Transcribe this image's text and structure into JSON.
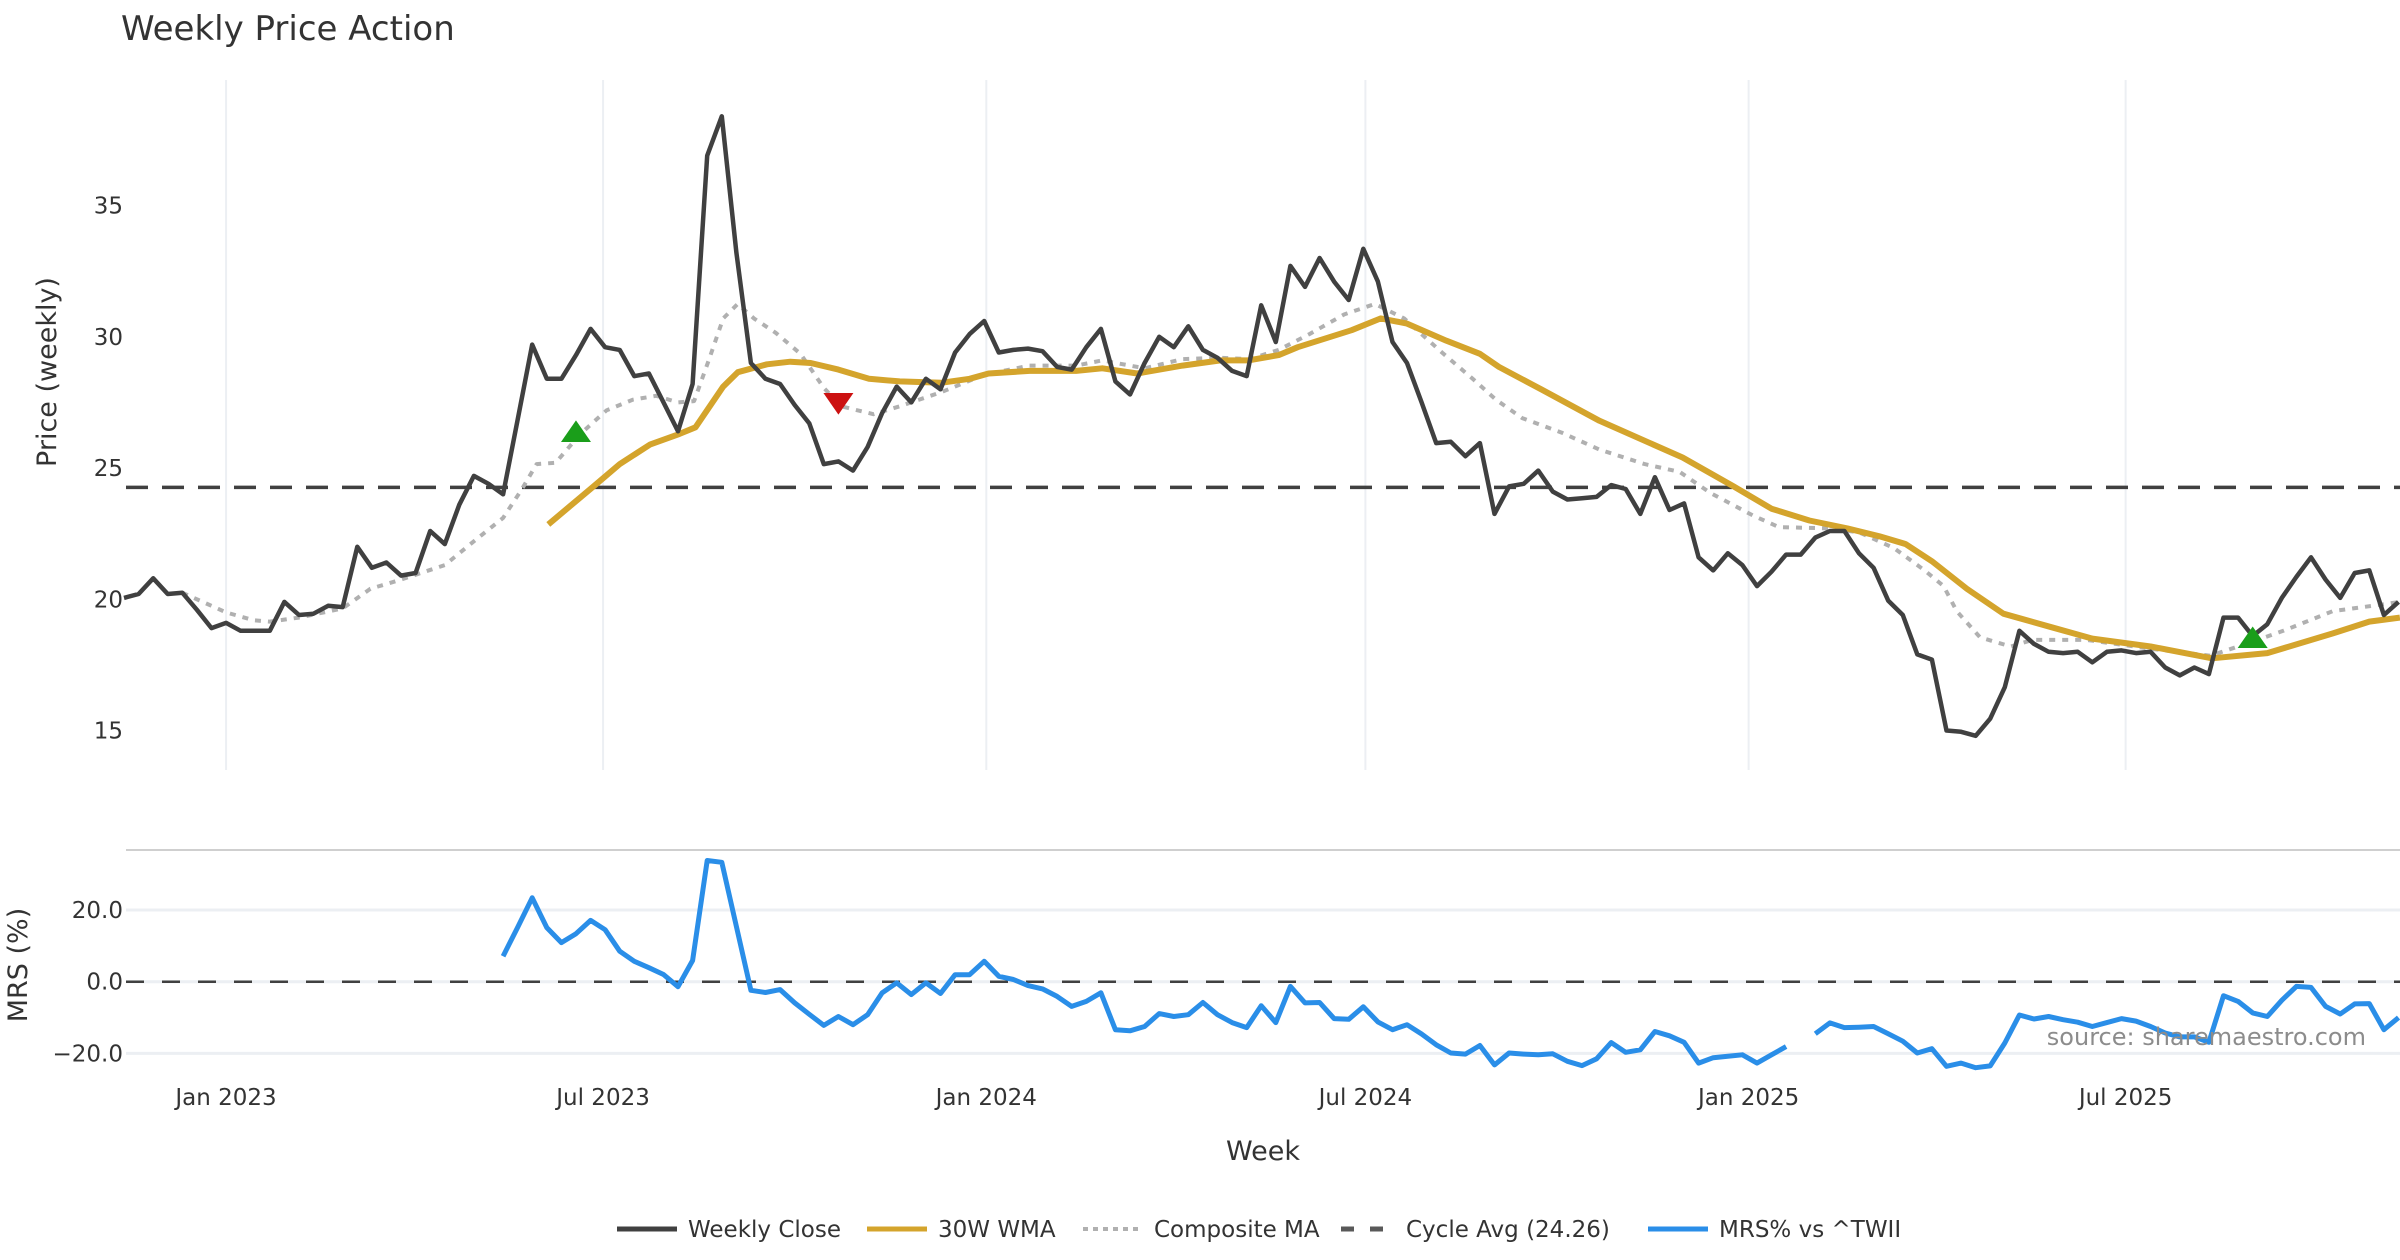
{
  "chart_data": [
    {
      "type": "line",
      "title": "Weekly Price Action",
      "xlabel": "Week",
      "ylabel": "Price (weekly)",
      "ylim": [
        13.5,
        39.8
      ],
      "yticks": [
        15,
        20,
        25,
        30,
        35
      ],
      "x_start_week": "2022-11-13",
      "x_step_days": 7,
      "xticks": [
        {
          "date": "2023-01-01",
          "label": "Jan 2023"
        },
        {
          "date": "2023-07-01",
          "label": "Jul 2023"
        },
        {
          "date": "2024-01-01",
          "label": "Jan 2024"
        },
        {
          "date": "2024-07-01",
          "label": "Jul 2024"
        },
        {
          "date": "2025-01-01",
          "label": "Jan 2025"
        },
        {
          "date": "2025-07-01",
          "label": "Jul 2025"
        }
      ],
      "grid": true,
      "series": [
        {
          "name": "Weekly Close",
          "color": "#404040",
          "style": "solid",
          "values": [
            20.05,
            20.2,
            20.8,
            20.2,
            20.25,
            19.6,
            18.9,
            19.1,
            18.8,
            18.8,
            18.8,
            19.9,
            19.4,
            19.45,
            19.75,
            19.7,
            22.0,
            21.2,
            21.4,
            20.9,
            21.0,
            22.6,
            22.1,
            23.6,
            24.7,
            24.4,
            24.0,
            26.85,
            29.7,
            28.4,
            28.4,
            29.3,
            30.3,
            29.6,
            29.5,
            28.5,
            28.6,
            27.5,
            26.4,
            28.2,
            36.9,
            38.4,
            33.2,
            29.0,
            28.4,
            28.2,
            27.4,
            26.7,
            25.15,
            25.25,
            24.9,
            25.8,
            27.1,
            28.1,
            27.5,
            28.4,
            28.0,
            29.4,
            30.1,
            30.6,
            29.4,
            29.5,
            29.55,
            29.45,
            28.85,
            28.75,
            29.6,
            30.3,
            28.3,
            27.8,
            29.0,
            30.0,
            29.6,
            30.4,
            29.5,
            29.2,
            28.7,
            28.5,
            31.2,
            29.8,
            32.7,
            31.9,
            33.0,
            32.1,
            31.4,
            33.35,
            32.1,
            29.8,
            29.0,
            27.5,
            25.95,
            26.0,
            25.45,
            25.95,
            23.25,
            24.3,
            24.4,
            24.9,
            24.1,
            23.8,
            23.85,
            23.9,
            24.35,
            24.2,
            23.25,
            24.65,
            23.4,
            23.65,
            21.6,
            21.1,
            21.75,
            21.3,
            20.5,
            21.05,
            21.7,
            21.7,
            22.35,
            22.6,
            22.6,
            21.75,
            21.2,
            19.95,
            19.4,
            17.9,
            17.7,
            15.0,
            14.95,
            14.8,
            15.45,
            16.65,
            18.8,
            18.3,
            18.0,
            17.95,
            18.0,
            17.6,
            18.0,
            18.05,
            17.95,
            18.0,
            17.4,
            17.1,
            17.4,
            17.15,
            19.3,
            19.3,
            18.6,
            19.05,
            20.05,
            20.85,
            21.6,
            20.75,
            20.05,
            21.0,
            21.1,
            19.4,
            19.9
          ]
        },
        {
          "name": "30W WMA",
          "color": "#d4a42c",
          "style": "solid",
          "points": [
            [
              29.1,
              22.85
            ],
            [
              32.2,
              24.3
            ],
            [
              34.0,
              25.15
            ],
            [
              36.1,
              25.9
            ],
            [
              38.1,
              26.3
            ],
            [
              39.2,
              26.55
            ],
            [
              41.1,
              28.1
            ],
            [
              42.1,
              28.65
            ],
            [
              44.1,
              28.95
            ],
            [
              45.7,
              29.05
            ],
            [
              47.1,
              29.0
            ],
            [
              49,
              28.75
            ],
            [
              51.1,
              28.4
            ],
            [
              53.2,
              28.3
            ],
            [
              56.1,
              28.25
            ],
            [
              58,
              28.4
            ],
            [
              59.3,
              28.6
            ],
            [
              62.1,
              28.7
            ],
            [
              65.3,
              28.7
            ],
            [
              67.1,
              28.8
            ],
            [
              69.5,
              28.6
            ],
            [
              72.6,
              28.9
            ],
            [
              75.2,
              29.1
            ],
            [
              77.1,
              29.1
            ],
            [
              79.2,
              29.3
            ],
            [
              80.5,
              29.6
            ],
            [
              84.2,
              30.25
            ],
            [
              86.2,
              30.7
            ],
            [
              88,
              30.5
            ],
            [
              90.7,
              29.85
            ],
            [
              93,
              29.35
            ],
            [
              94.3,
              28.85
            ],
            [
              97.2,
              28.0
            ],
            [
              101.2,
              26.8
            ],
            [
              106.9,
              25.4
            ],
            [
              110.4,
              24.3
            ],
            [
              113,
              23.45
            ],
            [
              115.6,
              23.0
            ],
            [
              118.2,
              22.7
            ],
            [
              120.4,
              22.4
            ],
            [
              122.2,
              22.1
            ],
            [
              124,
              21.45
            ],
            [
              126.4,
              20.4
            ],
            [
              128.9,
              19.45
            ],
            [
              132.1,
              18.95
            ],
            [
              135,
              18.5
            ],
            [
              139,
              18.2
            ],
            [
              143.2,
              17.75
            ],
            [
              147,
              17.95
            ],
            [
              151.5,
              18.7
            ],
            [
              154,
              19.15
            ],
            [
              156.1,
              19.3
            ]
          ]
        },
        {
          "name": "Composite MA",
          "color": "#b0b0b0",
          "style": "dotted",
          "points": [
            [
              4,
              20.25
            ],
            [
              7,
              19.5
            ],
            [
              8.9,
              19.2
            ],
            [
              10,
              19.15
            ],
            [
              12,
              19.3
            ],
            [
              15,
              19.65
            ],
            [
              16.9,
              20.4
            ],
            [
              19,
              20.75
            ],
            [
              22,
              21.3
            ],
            [
              24.2,
              22.3
            ],
            [
              26,
              23.1
            ],
            [
              27.3,
              24.2
            ],
            [
              28.3,
              25.15
            ],
            [
              29.6,
              25.2
            ],
            [
              31.3,
              26.3
            ],
            [
              33.1,
              27.2
            ],
            [
              34.9,
              27.6
            ],
            [
              36.5,
              27.75
            ],
            [
              38,
              27.5
            ],
            [
              39.1,
              27.55
            ],
            [
              40.1,
              29.1
            ],
            [
              41.1,
              30.7
            ],
            [
              42.1,
              31.25
            ],
            [
              43.2,
              30.7
            ],
            [
              44.7,
              30.15
            ],
            [
              46.4,
              29.35
            ],
            [
              48,
              28.05
            ],
            [
              49.2,
              27.35
            ],
            [
              51.4,
              27.05
            ],
            [
              53.2,
              27.35
            ],
            [
              56.1,
              27.9
            ],
            [
              59,
              28.55
            ],
            [
              62.1,
              28.9
            ],
            [
              65.3,
              28.9
            ],
            [
              67.1,
              29.1
            ],
            [
              70,
              28.8
            ],
            [
              72.6,
              29.15
            ],
            [
              75.2,
              29.2
            ],
            [
              77.2,
              29.15
            ],
            [
              79.2,
              29.5
            ],
            [
              81.3,
              30.1
            ],
            [
              83.7,
              30.85
            ],
            [
              85.8,
              31.25
            ],
            [
              87.8,
              30.7
            ],
            [
              90.4,
              29.4
            ],
            [
              92.5,
              28.4
            ],
            [
              94.1,
              27.6
            ],
            [
              95.9,
              26.9
            ],
            [
              98.6,
              26.35
            ],
            [
              101.2,
              25.7
            ],
            [
              104.3,
              25.15
            ],
            [
              106.7,
              24.85
            ],
            [
              108.8,
              24.05
            ],
            [
              111.7,
              23.2
            ],
            [
              113.5,
              22.75
            ],
            [
              116.9,
              22.7
            ],
            [
              119,
              22.55
            ],
            [
              121.4,
              21.95
            ],
            [
              123.5,
              21.1
            ],
            [
              124.8,
              20.5
            ],
            [
              125.7,
              19.55
            ],
            [
              127.3,
              18.55
            ],
            [
              129.4,
              18.2
            ],
            [
              130.9,
              18.45
            ],
            [
              134.6,
              18.45
            ],
            [
              139.2,
              18.1
            ],
            [
              143.1,
              17.85
            ],
            [
              145.8,
              18.35
            ],
            [
              148.1,
              18.8
            ],
            [
              151.5,
              19.55
            ],
            [
              154.9,
              19.8
            ],
            [
              156.1,
              19.9
            ]
          ]
        },
        {
          "name": "Cycle Avg (24.26)",
          "color": "#404040",
          "style": "dashed",
          "value": 24.26
        }
      ],
      "markers": [
        {
          "type": "buy",
          "shape": "triangle-up",
          "color": "#1a9e1a",
          "week_index": 31,
          "price": 26.3
        },
        {
          "type": "sell",
          "shape": "triangle-down",
          "color": "#cc1111",
          "week_index": 49,
          "price": 27.55
        },
        {
          "type": "buy",
          "shape": "triangle-up",
          "color": "#1a9e1a",
          "week_index": 146,
          "price": 18.45
        }
      ]
    },
    {
      "type": "line",
      "ylabel": "MRS (%)",
      "ylim": [
        -26,
        36.7
      ],
      "yticks": [
        {
          "value": 20,
          "label": "20.0"
        },
        {
          "value": 0,
          "label": "0.0"
        },
        {
          "value": -20,
          "label": "−20.0"
        }
      ],
      "reference_line": {
        "value": 0,
        "style": "dashed",
        "color": "#404040"
      },
      "series": [
        {
          "name": "MRS% vs ^TWII",
          "color": "#2a8ee8",
          "start_index": 26,
          "values": [
            7.1,
            15.2,
            23.4,
            15.1,
            10.9,
            13.4,
            17.1,
            14.5,
            8.5,
            5.7,
            3.9,
            2.0,
            -1.4,
            5.9,
            33.8,
            33.3,
            15.4,
            -2.4,
            -3.0,
            -2.2,
            -5.9,
            -9.1,
            -12.2,
            -9.7,
            -12.0,
            -9.2,
            -3.1,
            -0.3,
            -3.6,
            -0.3,
            -3.3,
            1.95,
            1.95,
            5.7,
            1.5,
            0.6,
            -1.1,
            -2.0,
            -4.1,
            -6.9,
            -5.5,
            -3.1,
            -13.4,
            -13.7,
            -12.5,
            -8.9,
            -9.7,
            -9.2,
            -5.8,
            -9.2,
            -11.4,
            -12.8,
            -6.7,
            -11.4,
            -1.3,
            -5.9,
            -5.8,
            -10.3,
            -10.5,
            -7.0,
            -11.2,
            -13.4,
            -12.0,
            -14.6,
            -17.6,
            -19.9,
            -20.2,
            -17.8,
            -23.2,
            -19.9,
            -20.2,
            -20.4,
            -20.1,
            -22.2,
            -23.4,
            -21.5,
            -17.0,
            -19.7,
            -19.0,
            -13.9,
            -15.1,
            -16.9,
            -22.7,
            -21.2,
            -20.8,
            -20.4,
            -22.7,
            -20.4,
            -18.1,
            null,
            -14.5,
            -11.5,
            -12.8,
            -12.7,
            -12.5,
            -14.5,
            -16.6,
            -19.9,
            -18.7,
            -23.6,
            -22.7,
            -24.0,
            -23.5,
            -17.1,
            -9.3,
            -10.4,
            -9.7,
            -10.6,
            -11.3,
            -12.5,
            -11.4,
            -10.3,
            -11.0,
            -12.5,
            -14.3,
            -15.4,
            -15.4,
            -16.9,
            -3.9,
            -5.5,
            -8.7,
            -9.7,
            -5.2,
            -1.3,
            -1.6,
            -6.9,
            -9.0,
            -6.2,
            -6.1,
            -13.4,
            -10.0
          ]
        }
      ],
      "annotation": "source: sharemaestro.com"
    }
  ],
  "legend": {
    "placement": "bottom-center",
    "items": [
      {
        "label": "Weekly Close",
        "color": "#404040",
        "style": "solid"
      },
      {
        "label": "30W WMA",
        "color": "#d4a42c",
        "style": "solid"
      },
      {
        "label": "Composite MA",
        "color": "#b0b0b0",
        "style": "dotted"
      },
      {
        "label": "Cycle Avg (24.26)",
        "color": "#595959",
        "style": "dashed"
      },
      {
        "label": "MRS% vs ^TWII",
        "color": "#2a8ee8",
        "style": "solid"
      }
    ]
  }
}
